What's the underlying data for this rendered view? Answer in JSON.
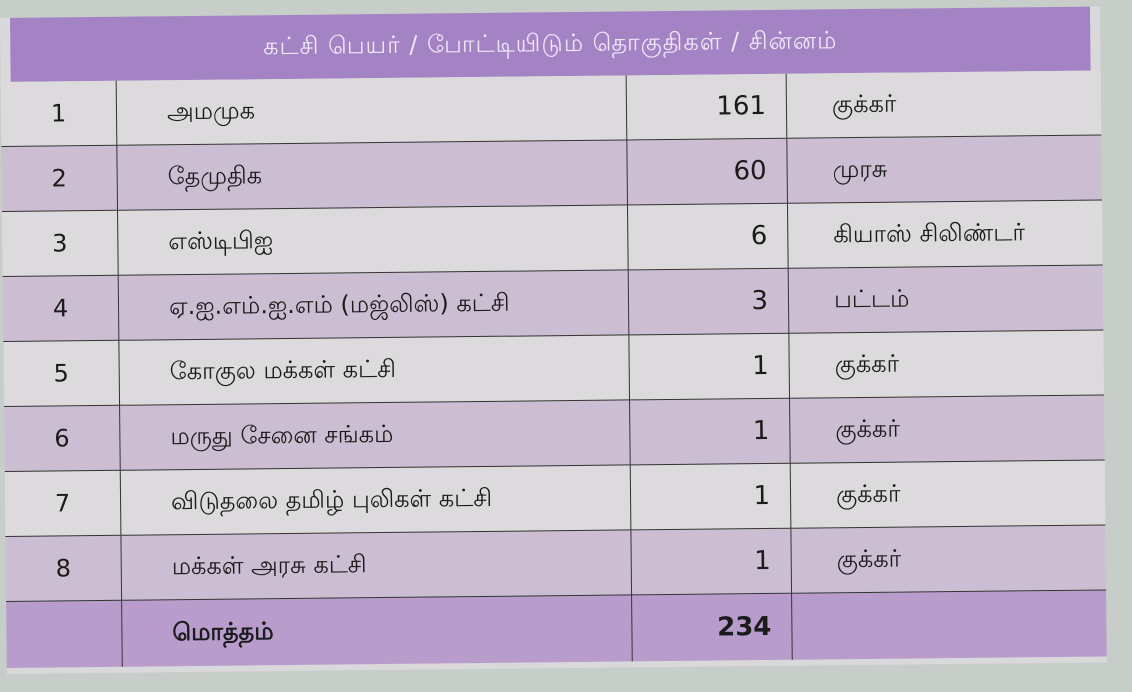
{
  "header": {
    "title": "கட்சி பெயர் / போட்டியிடும் தொகுதிகள் / சின்னம்"
  },
  "rows": [
    {
      "no": "1",
      "party": "அமமுக",
      "seats": "161",
      "symbol": "குக்கர்"
    },
    {
      "no": "2",
      "party": "தேமுதிக",
      "seats": "60",
      "symbol": "முரசு"
    },
    {
      "no": "3",
      "party": "எஸ்டிபிஐ",
      "seats": "6",
      "symbol": "கியாஸ் சிலிண்டர்"
    },
    {
      "no": "4",
      "party": "ஏ.ஐ.எம்.ஐ.எம் (மஜ்லிஸ்) கட்சி",
      "seats": "3",
      "symbol": "பட்டம்"
    },
    {
      "no": "5",
      "party": "கோகுல மக்கள் கட்சி",
      "seats": "1",
      "symbol": "குக்கர்"
    },
    {
      "no": "6",
      "party": "மருது சேனை சங்கம்",
      "seats": "1",
      "symbol": "குக்கர்"
    },
    {
      "no": "7",
      "party": "விடுதலை தமிழ் புலிகள் கட்சி",
      "seats": "1",
      "symbol": "குக்கர்"
    },
    {
      "no": "8",
      "party": "மக்கள் அரசு கட்சி",
      "seats": "1",
      "symbol": "குக்கர்"
    }
  ],
  "total": {
    "label": "மொத்தம்",
    "seats": "234"
  },
  "colors": {
    "header": "#a383c4",
    "row_alt": "#cbbdd2",
    "row_plain": "#dcdadc",
    "total": "#b79ccc"
  }
}
